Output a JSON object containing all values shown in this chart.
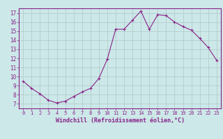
{
  "x": [
    0,
    1,
    2,
    3,
    4,
    5,
    6,
    7,
    8,
    9,
    10,
    11,
    12,
    13,
    14,
    15,
    16,
    17,
    18,
    19,
    20,
    21,
    22,
    23
  ],
  "y": [
    9.5,
    8.7,
    8.1,
    7.4,
    7.1,
    7.3,
    7.8,
    8.3,
    8.7,
    9.8,
    11.9,
    15.2,
    15.2,
    16.2,
    17.2,
    15.2,
    16.8,
    16.7,
    16.0,
    15.5,
    15.1,
    14.2,
    13.2,
    11.8
  ],
  "line_color": "#882288",
  "marker": "+",
  "marker_size": 3,
  "xlim": [
    -0.5,
    23.5
  ],
  "ylim": [
    6.5,
    17.5
  ],
  "yticks": [
    7,
    8,
    9,
    10,
    11,
    12,
    13,
    14,
    15,
    16,
    17
  ],
  "xticks": [
    0,
    1,
    2,
    3,
    4,
    5,
    6,
    7,
    8,
    9,
    10,
    11,
    12,
    13,
    14,
    15,
    16,
    17,
    18,
    19,
    20,
    21,
    22,
    23
  ],
  "xlabel": "Windchill (Refroidissement éolien,°C)",
  "background_color": "#cce8e8",
  "grid_color": "#b0c8c8",
  "label_color": "#882288",
  "tick_color": "#882288",
  "font_family": "monospace"
}
